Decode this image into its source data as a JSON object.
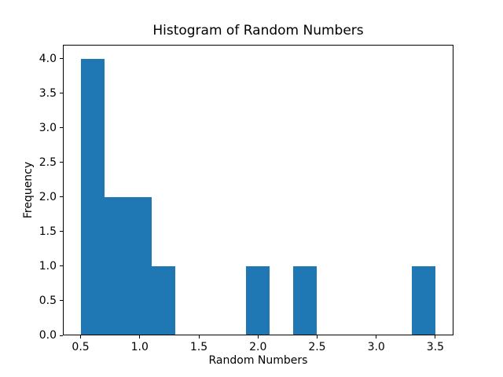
{
  "chart_data": {
    "type": "histogram",
    "title": "Histogram of Random Numbers",
    "xlabel": "Random Numbers",
    "ylabel": "Frequency",
    "bar_color": "#1f77b4",
    "bin_edges": [
      0.5,
      0.7,
      0.9,
      1.1,
      1.3,
      1.5,
      1.7,
      1.9,
      2.1,
      2.3,
      2.5,
      2.7,
      2.9,
      3.1,
      3.3,
      3.5
    ],
    "counts": [
      4,
      2,
      2,
      1,
      0,
      0,
      0,
      1,
      0,
      1,
      0,
      0,
      0,
      0,
      1
    ],
    "xlim": [
      0.35,
      3.65
    ],
    "ylim": [
      0,
      4.2
    ],
    "xticks": [
      0.5,
      1.0,
      1.5,
      2.0,
      2.5,
      3.0,
      3.5
    ],
    "xtick_labels": [
      "0.5",
      "1.0",
      "1.5",
      "2.0",
      "2.5",
      "3.0",
      "3.5"
    ],
    "yticks": [
      0.0,
      0.5,
      1.0,
      1.5,
      2.0,
      2.5,
      3.0,
      3.5,
      4.0
    ],
    "ytick_labels": [
      "0.0",
      "0.5",
      "1.0",
      "1.5",
      "2.0",
      "2.5",
      "3.0",
      "3.5",
      "4.0"
    ],
    "legend": null,
    "grid": false
  }
}
